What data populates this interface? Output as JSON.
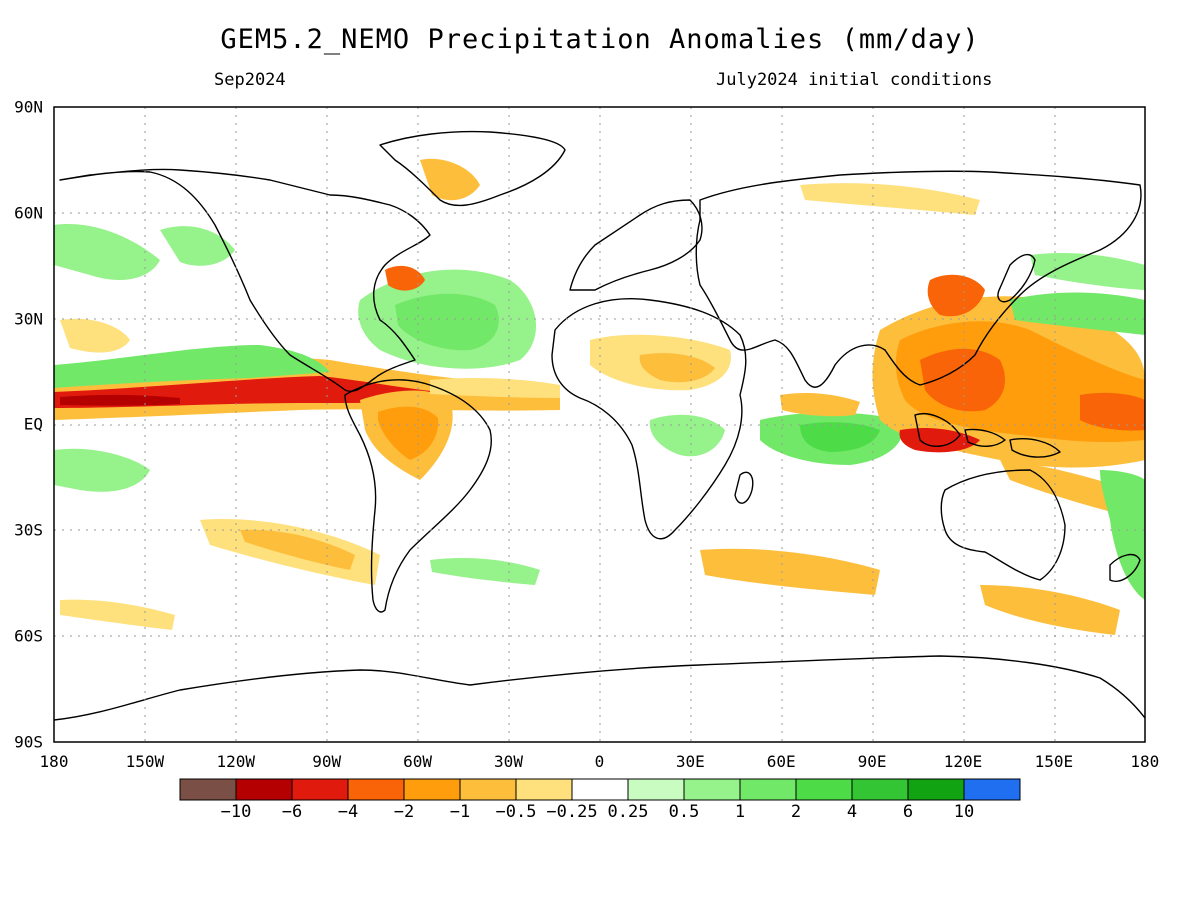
{
  "title": "GEM5.2_NEMO Precipitation Anomalies (mm/day)",
  "valid_month": "Sep2024",
  "init_conditions": "July2024 initial conditions",
  "y_axis_labels": [
    "90N",
    "60N",
    "30N",
    "EQ",
    "30S",
    "60S",
    "90S"
  ],
  "x_axis_labels": [
    "180",
    "150W",
    "120W",
    "90W",
    "60W",
    "30W",
    "0",
    "30E",
    "60E",
    "90E",
    "120E",
    "150E",
    "180"
  ],
  "colorbar": {
    "colors": [
      "#7a4f45",
      "#b40000",
      "#e11a0e",
      "#f96408",
      "#ff9d0c",
      "#fdbe3c",
      "#fee07d",
      "#ffffff",
      "#c8fcc1",
      "#96f28a",
      "#72e869",
      "#4ddc47",
      "#33c533",
      "#12a312",
      "#1f6ff0"
    ],
    "labels": [
      "−10",
      "−6",
      "−4",
      "−2",
      "−1",
      "−0.5",
      "−0.25",
      "0.25",
      "0.5",
      "1",
      "2",
      "4",
      "6",
      "10"
    ]
  },
  "palette": {
    "grid": "#9a9a9a",
    "coast": "#000000",
    "frame": "#000000"
  }
}
